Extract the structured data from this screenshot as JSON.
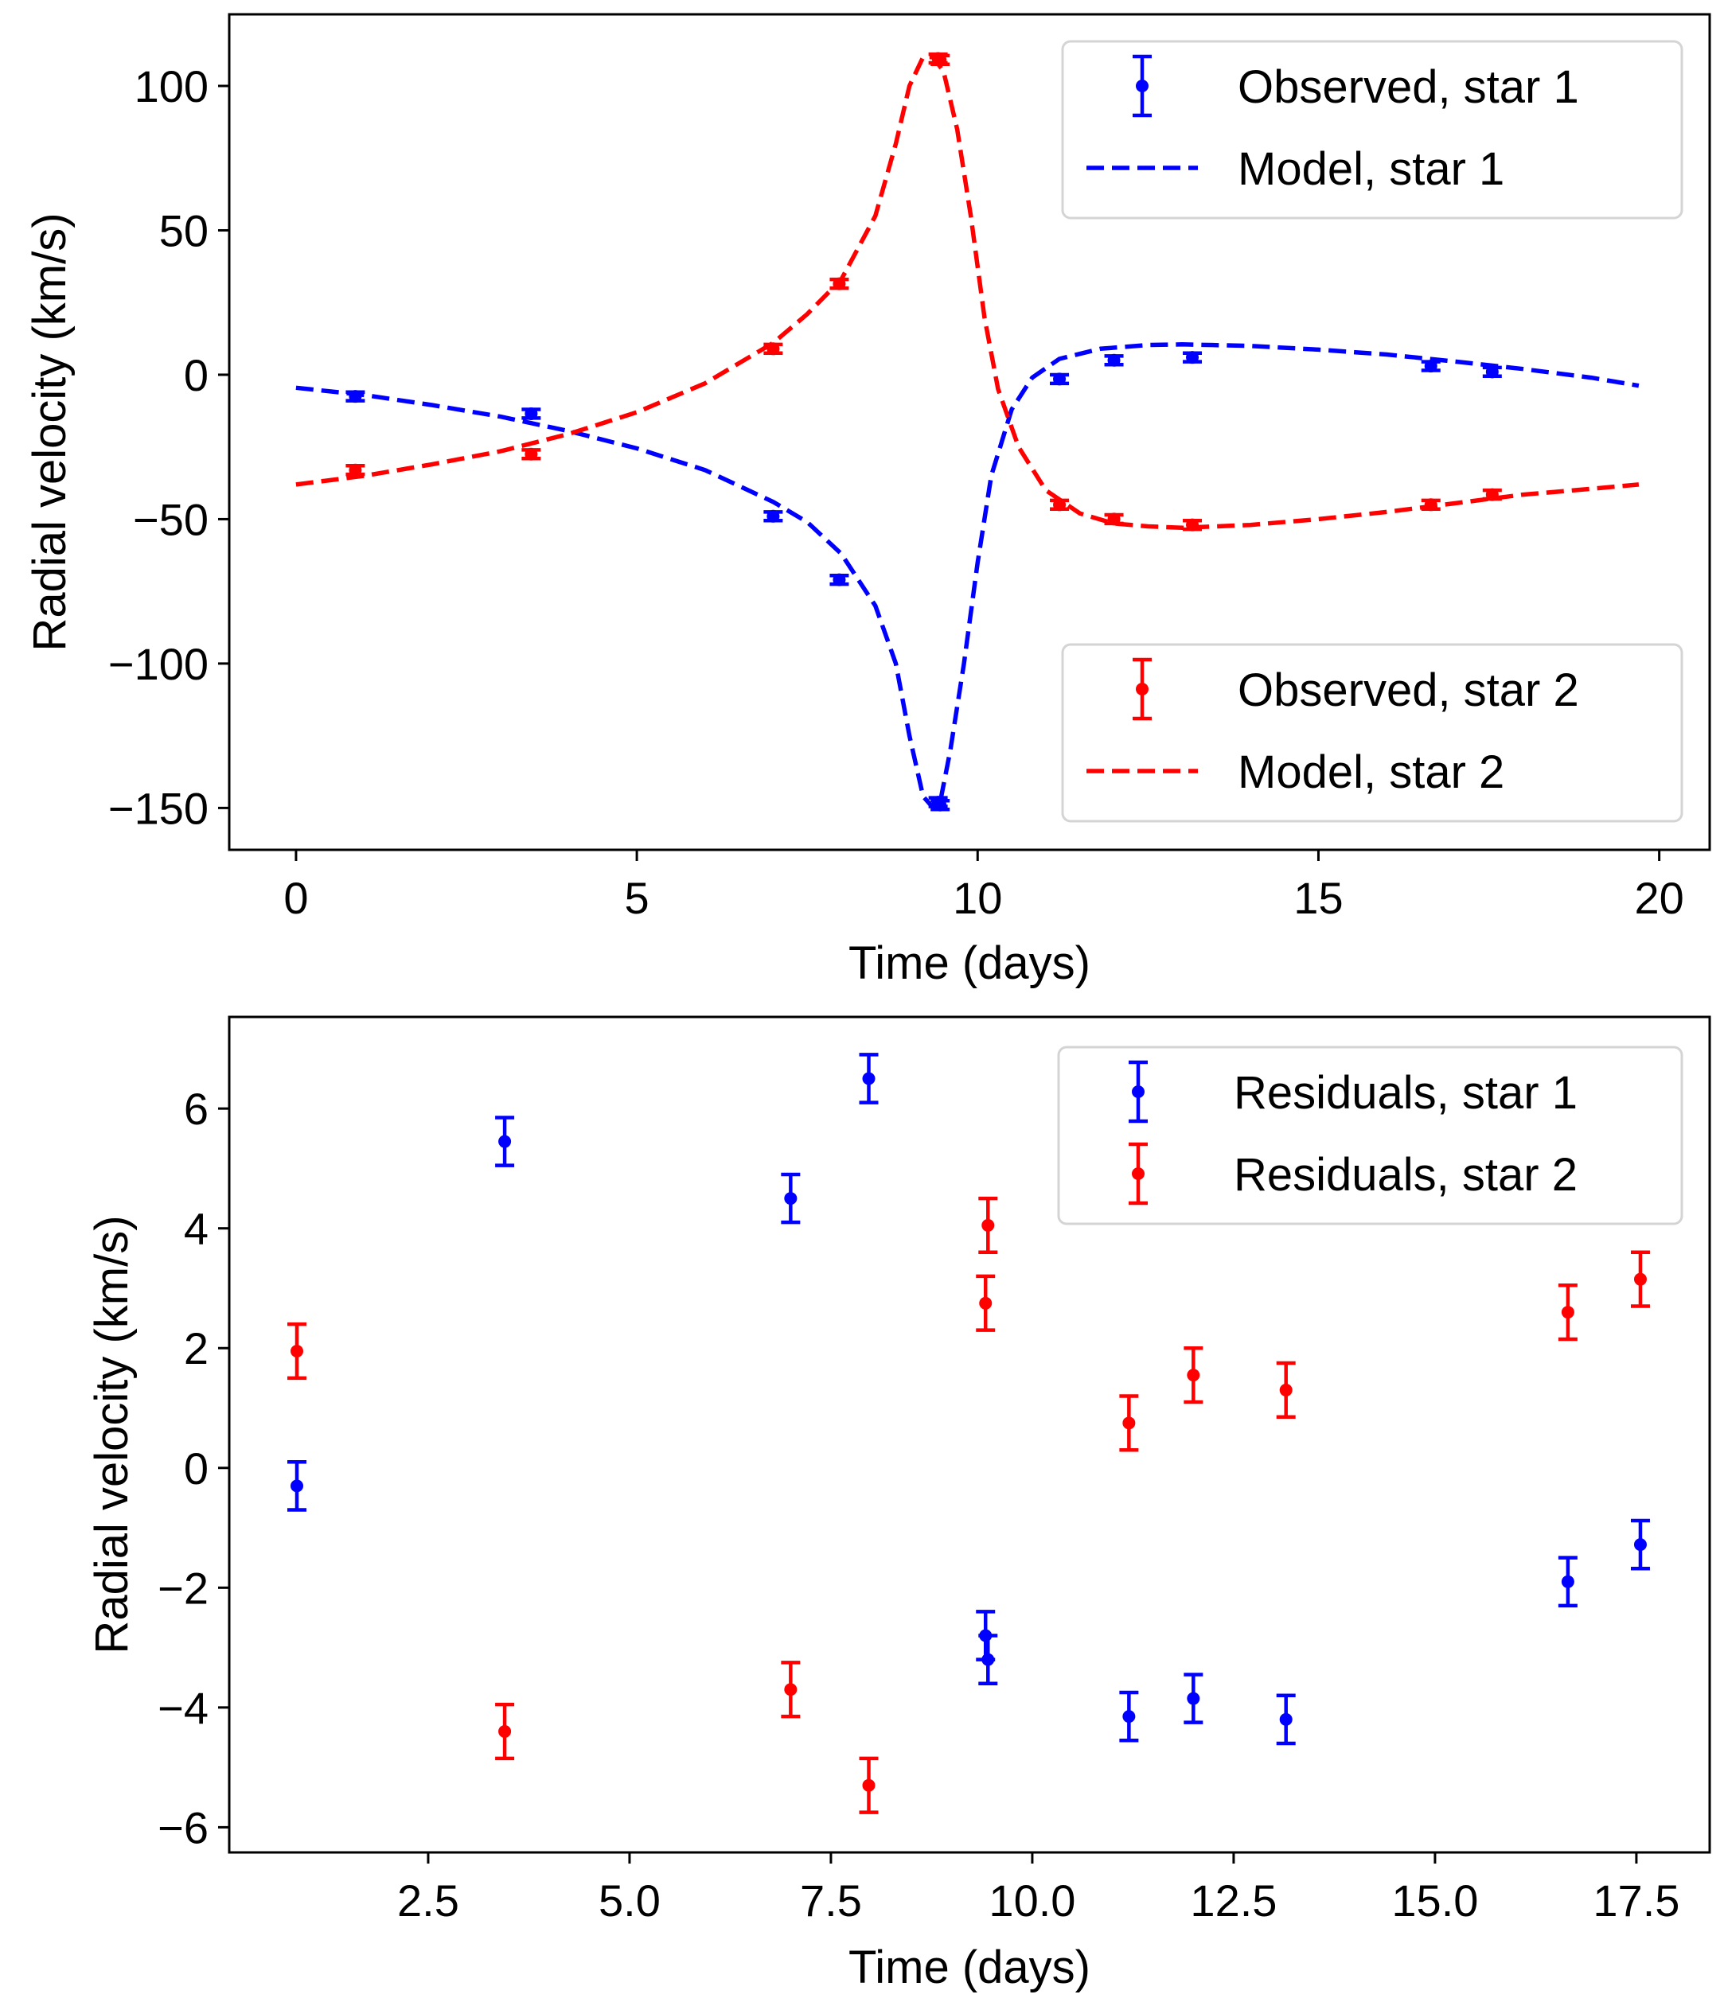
{
  "chart_data": [
    {
      "type": "line",
      "panel": "top",
      "title": "",
      "xlabel": "Time (days)",
      "ylabel": "Radial velocity (km/s)",
      "xlim": [
        -0.98,
        20.74
      ],
      "ylim": [
        -164.5,
        124.8
      ],
      "xticks": [
        0,
        5,
        10,
        15,
        20
      ],
      "xtick_labels": [
        "0",
        "5",
        "10",
        "15",
        "20"
      ],
      "yticks": [
        -150,
        -100,
        -50,
        0,
        50,
        100
      ],
      "ytick_labels": [
        "−150",
        "−100",
        "−50",
        "0",
        "50",
        "100"
      ],
      "grid": false,
      "legends": [
        {
          "placement": "upper-right",
          "entries": [
            {
              "label": "Observed, star 1",
              "kind": "errorbar",
              "color": "#0000ff"
            },
            {
              "label": "Model, star 1",
              "kind": "dashed-line",
              "color": "#0000ff"
            }
          ]
        },
        {
          "placement": "lower-right",
          "entries": [
            {
              "label": "Observed, star 2",
              "kind": "errorbar",
              "color": "#ff0000"
            },
            {
              "label": "Model, star 2",
              "kind": "dashed-line",
              "color": "#ff0000"
            }
          ]
        }
      ],
      "series": [
        {
          "name": "Observed, star 1",
          "kind": "errorbar",
          "color": "#0000ff",
          "x": [
            0.87,
            3.45,
            7.0,
            7.97,
            9.42,
            9.45,
            11.2,
            12.0,
            13.15,
            16.65,
            17.55
          ],
          "y": [
            -7.5,
            -13.5,
            -49,
            -71,
            -148,
            -149,
            -1.5,
            5,
            6,
            3,
            1
          ],
          "yerr": [
            1.5,
            1.5,
            1.5,
            1.5,
            1.5,
            1.5,
            1.5,
            1.5,
            1.5,
            1.5,
            1.5
          ]
        },
        {
          "name": "Model, star 1",
          "kind": "dashed-line",
          "color": "#0000ff",
          "x": [
            0,
            1,
            2,
            3,
            4,
            5,
            6,
            7,
            7.5,
            8,
            8.5,
            8.8,
            9.0,
            9.2,
            9.35,
            9.45,
            9.6,
            9.8,
            10.0,
            10.2,
            10.5,
            10.8,
            11.2,
            11.8,
            12.5,
            13,
            14,
            15,
            16,
            17,
            18,
            19,
            19.7
          ],
          "y": [
            -4.5,
            -7,
            -10.5,
            -14.5,
            -19.5,
            -25.5,
            -33,
            -44,
            -51,
            -62,
            -80,
            -100,
            -125,
            -146,
            -150,
            -148,
            -130,
            -100,
            -65,
            -35,
            -12,
            -1,
            5.5,
            9,
            10.3,
            10.5,
            10,
            8.7,
            7,
            4.6,
            2,
            -1,
            -3.8
          ]
        },
        {
          "name": "Observed, star 2",
          "kind": "errorbar",
          "color": "#ff0000",
          "x": [
            0.87,
            3.45,
            7.0,
            7.97,
            9.42,
            9.45,
            11.2,
            12.0,
            13.15,
            16.65,
            17.55
          ],
          "y": [
            -33,
            -27.5,
            9,
            31.5,
            109.5,
            109,
            -45,
            -50,
            -52,
            -45,
            -41.5
          ],
          "yerr": [
            1.5,
            1.5,
            1.5,
            1.5,
            1.5,
            1.5,
            1.5,
            1.5,
            1.5,
            1.5,
            1.5
          ]
        },
        {
          "name": "Model, star 2",
          "kind": "dashed-line",
          "color": "#ff0000",
          "x": [
            0,
            1,
            2,
            3,
            4,
            5,
            6,
            7,
            7.5,
            8,
            8.5,
            8.8,
            9.0,
            9.2,
            9.35,
            9.5,
            9.7,
            9.9,
            10.1,
            10.3,
            10.6,
            11,
            11.5,
            12,
            12.5,
            13,
            14,
            15,
            16,
            17,
            18,
            19,
            19.7
          ],
          "y": [
            -38,
            -35,
            -31,
            -26.5,
            -20.5,
            -13,
            -3,
            11,
            21,
            33,
            55,
            80,
            100,
            110,
            110,
            105,
            85,
            55,
            20,
            -5,
            -25,
            -40,
            -48,
            -51.5,
            -52.5,
            -53,
            -52,
            -50,
            -47.5,
            -44.5,
            -41.5,
            -39.5,
            -38
          ]
        }
      ]
    },
    {
      "type": "scatter",
      "panel": "bottom",
      "title": "",
      "xlabel": "Time (days)",
      "ylabel": "Radial velocity (km/s)",
      "xlim": [
        0.03,
        18.41
      ],
      "ylim": [
        -6.42,
        7.53
      ],
      "xticks": [
        2.5,
        5.0,
        7.5,
        10.0,
        12.5,
        15.0,
        17.5
      ],
      "xtick_labels": [
        "2.5",
        "5.0",
        "7.5",
        "10.0",
        "12.5",
        "15.0",
        "17.5"
      ],
      "yticks": [
        -6,
        -4,
        -2,
        0,
        2,
        4,
        6
      ],
      "ytick_labels": [
        "−6",
        "−4",
        "−2",
        "0",
        "2",
        "4",
        "6"
      ],
      "grid": false,
      "legends": [
        {
          "placement": "upper-right",
          "entries": [
            {
              "label": "Residuals, star 1",
              "kind": "errorbar",
              "color": "#0000ff"
            },
            {
              "label": "Residuals, star 2",
              "kind": "errorbar",
              "color": "#ff0000"
            }
          ]
        }
      ],
      "series": [
        {
          "name": "Residuals, star 1",
          "kind": "errorbar",
          "color": "#0000ff",
          "x": [
            0.87,
            3.45,
            7.0,
            7.97,
            9.42,
            9.45,
            11.2,
            12.0,
            13.15,
            16.65,
            17.55
          ],
          "y": [
            -0.3,
            5.45,
            4.5,
            6.5,
            -2.8,
            -3.2,
            -4.15,
            -3.85,
            -4.2,
            -1.9,
            -1.28
          ],
          "yerr": [
            0.4,
            0.4,
            0.4,
            0.4,
            0.4,
            0.4,
            0.4,
            0.4,
            0.4,
            0.4,
            0.4
          ]
        },
        {
          "name": "Residuals, star 2",
          "kind": "errorbar",
          "color": "#ff0000",
          "x": [
            0.87,
            3.45,
            7.0,
            7.97,
            9.42,
            9.45,
            11.2,
            12.0,
            13.15,
            16.65,
            17.55
          ],
          "y": [
            1.95,
            -4.4,
            -3.7,
            -5.3,
            2.75,
            4.05,
            0.75,
            1.55,
            1.3,
            2.6,
            3.15
          ],
          "yerr": [
            0.45,
            0.45,
            0.45,
            0.45,
            0.45,
            0.45,
            0.45,
            0.45,
            0.45,
            0.45,
            0.45
          ]
        }
      ]
    }
  ]
}
